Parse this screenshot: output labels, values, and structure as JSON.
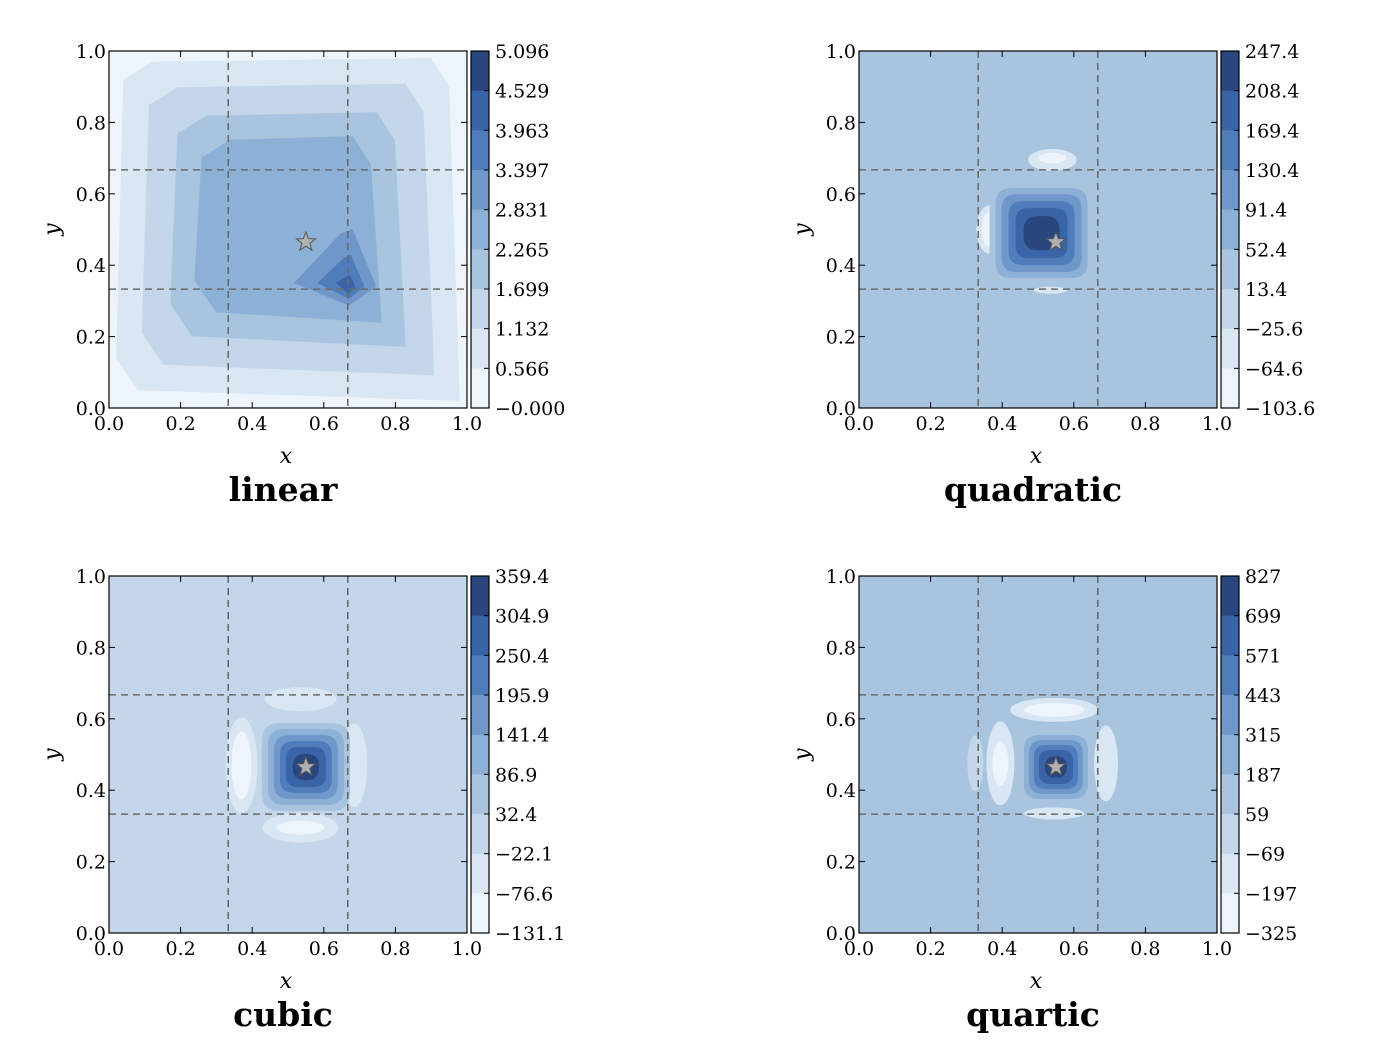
{
  "chart_data": [
    {
      "type": "contour",
      "title": "linear",
      "xlabel": "x",
      "ylabel": "y",
      "xlim": [
        0.0,
        1.0
      ],
      "ylim": [
        0.0,
        1.0
      ],
      "xticks": [
        "0.0",
        "0.2",
        "0.4",
        "0.6",
        "0.8",
        "1.0"
      ],
      "yticks": [
        "0.0",
        "0.2",
        "0.4",
        "0.6",
        "0.8",
        "1.0"
      ],
      "colorbar_ticks": [
        "5.096",
        "4.529",
        "3.963",
        "3.397",
        "2.831",
        "2.265",
        "1.699",
        "1.132",
        "0.566",
        "−0.000"
      ],
      "colorbar_levels": [
        5.096,
        4.529,
        3.963,
        3.397,
        2.831,
        2.265,
        1.699,
        1.132,
        0.566,
        0.0
      ],
      "grid_lines_x": [
        0.333,
        0.667
      ],
      "grid_lines_y": [
        0.333,
        0.667
      ],
      "star": [
        0.55,
        0.465
      ],
      "peak": [
        0.67,
        0.33
      ],
      "background_level": 0
    },
    {
      "type": "contour",
      "title": "quadratic",
      "xlabel": "x",
      "ylabel": "y",
      "xlim": [
        0.0,
        1.0
      ],
      "ylim": [
        0.0,
        1.0
      ],
      "xticks": [
        "0.0",
        "0.2",
        "0.4",
        "0.6",
        "0.8",
        "1.0"
      ],
      "yticks": [
        "0.0",
        "0.2",
        "0.4",
        "0.6",
        "0.8",
        "1.0"
      ],
      "colorbar_ticks": [
        "247.4",
        "208.4",
        "169.4",
        "130.4",
        "91.4",
        "52.4",
        "13.4",
        "−25.6",
        "−64.6",
        "−103.6"
      ],
      "colorbar_levels": [
        247.4,
        208.4,
        169.4,
        130.4,
        91.4,
        52.4,
        13.4,
        -25.6,
        -64.6,
        -103.6
      ],
      "grid_lines_x": [
        0.333,
        0.667
      ],
      "grid_lines_y": [
        0.333,
        0.667
      ],
      "star": [
        0.55,
        0.465
      ],
      "peak": [
        0.51,
        0.49
      ],
      "background_level": 3
    },
    {
      "type": "contour",
      "title": "cubic",
      "xlabel": "x",
      "ylabel": "y",
      "xlim": [
        0.0,
        1.0
      ],
      "ylim": [
        0.0,
        1.0
      ],
      "xticks": [
        "0.0",
        "0.2",
        "0.4",
        "0.6",
        "0.8",
        "1.0"
      ],
      "yticks": [
        "0.0",
        "0.2",
        "0.4",
        "0.6",
        "0.8",
        "1.0"
      ],
      "colorbar_ticks": [
        "359.4",
        "304.9",
        "250.4",
        "195.9",
        "141.4",
        "86.9",
        "32.4",
        "−22.1",
        "−76.6",
        "−131.1"
      ],
      "colorbar_levels": [
        359.4,
        304.9,
        250.4,
        195.9,
        141.4,
        86.9,
        32.4,
        -22.1,
        -76.6,
        -131.1
      ],
      "grid_lines_x": [
        0.333,
        0.667
      ],
      "grid_lines_y": [
        0.333,
        0.667
      ],
      "star": [
        0.55,
        0.465
      ],
      "peak": [
        0.55,
        0.465
      ],
      "background_level": 2
    },
    {
      "type": "contour",
      "title": "quartic",
      "xlabel": "x",
      "ylabel": "y",
      "xlim": [
        0.0,
        1.0
      ],
      "ylim": [
        0.0,
        1.0
      ],
      "xticks": [
        "0.0",
        "0.2",
        "0.4",
        "0.6",
        "0.8",
        "1.0"
      ],
      "yticks": [
        "0.0",
        "0.2",
        "0.4",
        "0.6",
        "0.8",
        "1.0"
      ],
      "colorbar_ticks": [
        "827",
        "699",
        "571",
        "443",
        "315",
        "187",
        "59",
        "−69",
        "−197",
        "−325"
      ],
      "colorbar_levels": [
        827,
        699,
        571,
        443,
        315,
        187,
        59,
        -69,
        -197,
        -325
      ],
      "grid_lines_x": [
        0.333,
        0.667
      ],
      "grid_lines_y": [
        0.333,
        0.667
      ],
      "star": [
        0.55,
        0.465
      ],
      "peak": [
        0.55,
        0.465
      ],
      "background_level": 3
    }
  ],
  "palette": [
    "#eef4fb",
    "#d9e6f3",
    "#c4d7ea",
    "#a9c4df",
    "#8db0d6",
    "#6f97c9",
    "#4f7dbb",
    "#3964a7",
    "#29467f"
  ],
  "background_color": "#c3d6ea",
  "star_color": "#b0b0b0"
}
